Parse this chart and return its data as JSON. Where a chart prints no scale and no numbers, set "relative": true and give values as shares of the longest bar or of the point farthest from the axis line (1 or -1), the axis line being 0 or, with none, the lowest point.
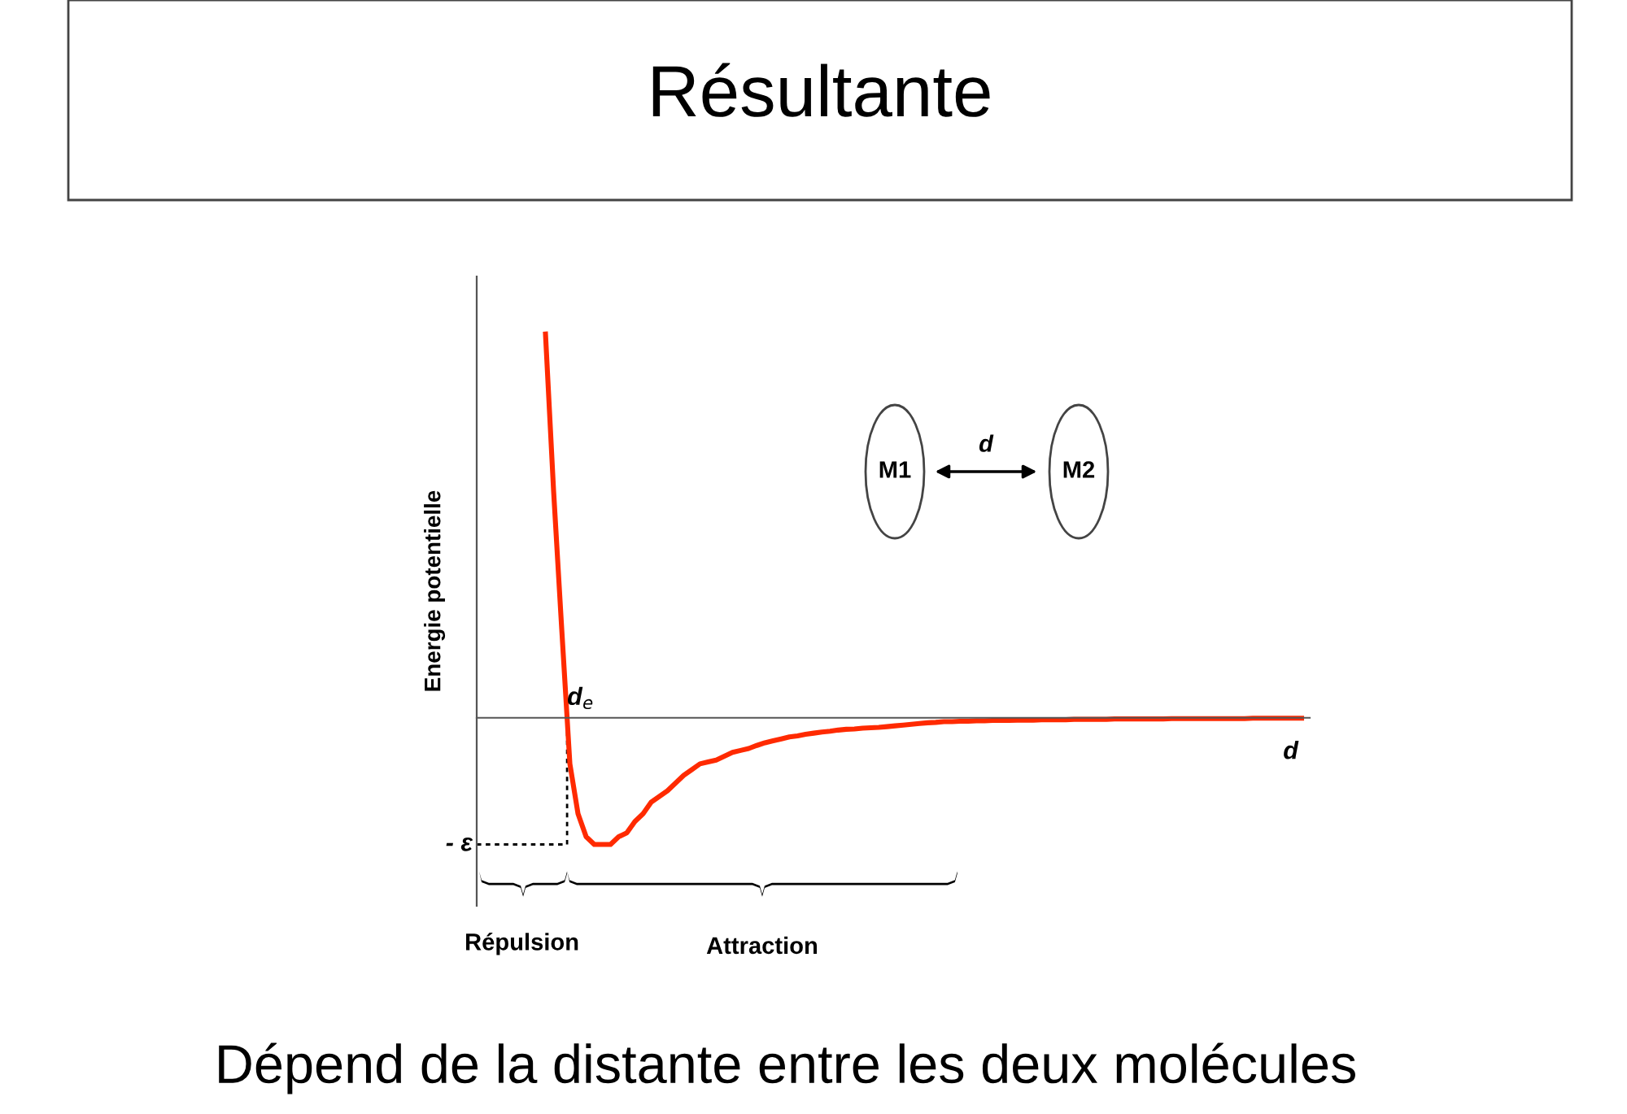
{
  "chart_data": {
    "type": "line",
    "relative": true,
    "title": "Résultante",
    "ylabel": "Energie potentielle",
    "xlabel": "d",
    "color": "#ff2a00",
    "marker": "none",
    "line_style": "solid",
    "legend": false,
    "tick_labels": false,
    "categories": [
      null,
      null,
      null,
      null,
      null,
      null,
      null,
      null,
      null,
      null,
      null,
      null,
      null,
      null,
      null,
      null,
      null,
      null,
      null,
      null,
      null,
      null,
      null,
      null,
      null,
      null,
      null,
      null,
      null,
      null,
      null,
      null,
      null,
      null,
      null,
      null,
      null,
      null,
      null,
      null,
      null,
      null,
      null,
      null,
      null,
      null,
      null,
      null,
      null,
      null,
      null,
      null,
      null,
      null,
      null,
      null,
      null,
      null,
      null,
      null,
      null,
      null,
      null,
      null,
      null,
      null,
      null,
      null,
      null,
      null,
      null,
      null,
      null,
      null,
      null,
      null,
      null,
      null,
      null,
      null,
      null,
      null,
      null,
      null,
      null,
      null,
      null,
      null,
      null,
      null,
      null,
      null,
      null,
      null
    ],
    "values": [
      1.0,
      0.59,
      0.23,
      -0.12,
      -0.25,
      -0.31,
      -0.33,
      -0.33,
      -0.33,
      -0.31,
      -0.3,
      -0.27,
      -0.25,
      -0.22,
      -0.205,
      -0.19,
      -0.17,
      -0.15,
      -0.135,
      -0.12,
      -0.115,
      -0.11,
      -0.1,
      -0.09,
      -0.085,
      -0.08,
      -0.072,
      -0.065,
      -0.06,
      -0.055,
      -0.05,
      -0.047,
      -0.043,
      -0.04,
      -0.037,
      -0.035,
      -0.032,
      -0.03,
      -0.029,
      -0.027,
      -0.026,
      -0.025,
      -0.023,
      -0.021,
      -0.019,
      -0.017,
      -0.015,
      -0.013,
      -0.012,
      -0.01,
      -0.01,
      -0.009,
      -0.009,
      -0.008,
      -0.008,
      -0.007,
      -0.007,
      -0.007,
      -0.006,
      -0.006,
      -0.006,
      -0.005,
      -0.005,
      -0.005,
      -0.005,
      -0.004,
      -0.004,
      -0.004,
      -0.004,
      -0.004,
      -0.003,
      -0.003,
      -0.003,
      -0.003,
      -0.003,
      -0.003,
      -0.003,
      -0.002,
      -0.002,
      -0.002,
      -0.002,
      -0.002,
      -0.002,
      -0.002,
      -0.002,
      -0.002,
      -0.002,
      -0.001,
      -0.001,
      -0.001,
      -0.001,
      -0.001,
      -0.001,
      -0.001
    ],
    "annotations": [
      "d$_{e}$",
      "- ε",
      "Répulsion",
      "Attraction",
      "M1",
      "d",
      "M2",
      "Dépend de la distante entre les deux molécules"
    ]
  }
}
